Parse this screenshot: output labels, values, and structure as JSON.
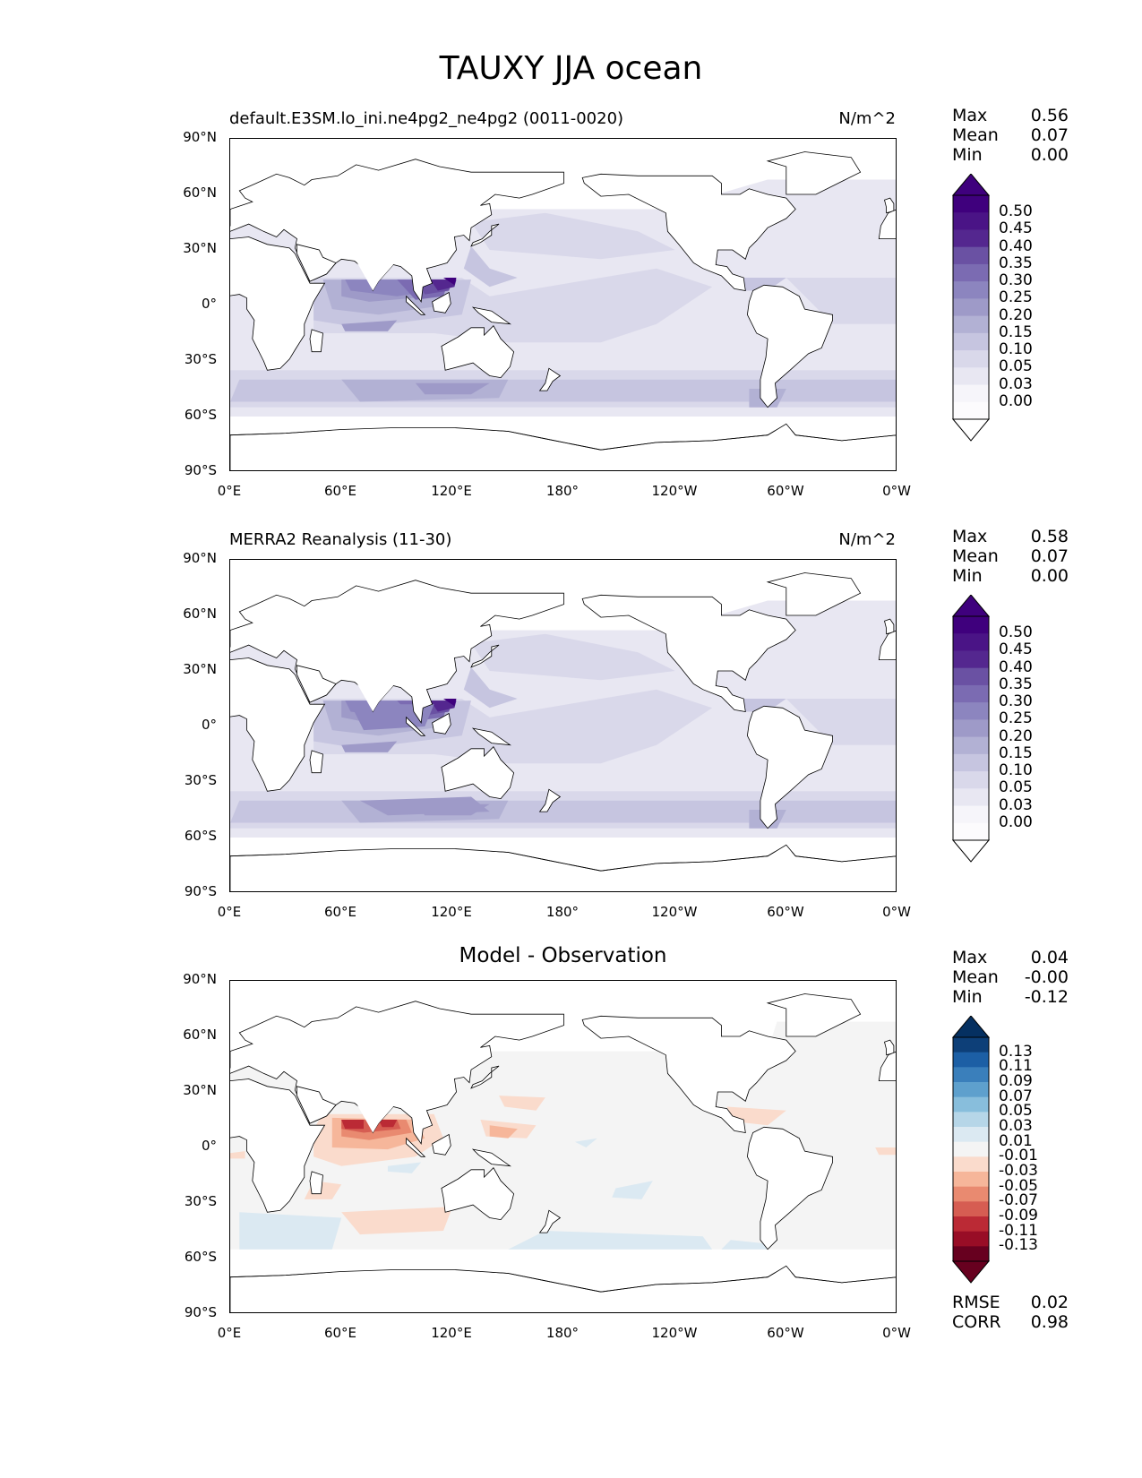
{
  "figure_title": "TAUXY JJA ocean",
  "axis_ticks": {
    "lat": [
      "90°N",
      "60°N",
      "30°N",
      "0°",
      "30°S",
      "60°S",
      "90°S"
    ],
    "lon": [
      "0°E",
      "60°E",
      "120°E",
      "180°",
      "120°W",
      "60°W",
      "0°W"
    ]
  },
  "panels": [
    {
      "title_left": "default.E3SM.lo_ini.ne4pg2_ne4pg2 (0011-0020)",
      "title_right": "N/m^2",
      "title_center": "",
      "stats": {
        "max_label": "Max",
        "max": "0.56",
        "mean_label": "Mean",
        "mean": "0.07",
        "min_label": "Min",
        "min": "0.00"
      },
      "colorbar": {
        "labels": [
          "0.50",
          "0.45",
          "0.40",
          "0.35",
          "0.30",
          "0.25",
          "0.20",
          "0.15",
          "0.10",
          "0.05",
          "0.03",
          "0.00"
        ],
        "colors": [
          "#3f007d",
          "#4a1486",
          "#54278f",
          "#6a51a3",
          "#7b6bb2",
          "#8c85bf",
          "#9e9ac8",
          "#b2b1d4",
          "#c6c5e0",
          "#d9d8ea",
          "#e8e7f2",
          "#f6f5fa",
          "#fcfbfd"
        ],
        "top_color": "#3f007d",
        "bottom_color": "#ffffff"
      }
    },
    {
      "title_left": "MERRA2 Reanalysis (11-30)",
      "title_right": "N/m^2",
      "title_center": "",
      "stats": {
        "max_label": "Max",
        "max": "0.58",
        "mean_label": "Mean",
        "mean": "0.07",
        "min_label": "Min",
        "min": "0.00"
      },
      "colorbar": {
        "labels": [
          "0.50",
          "0.45",
          "0.40",
          "0.35",
          "0.30",
          "0.25",
          "0.20",
          "0.15",
          "0.10",
          "0.05",
          "0.03",
          "0.00"
        ],
        "colors": [
          "#3f007d",
          "#4a1486",
          "#54278f",
          "#6a51a3",
          "#7b6bb2",
          "#8c85bf",
          "#9e9ac8",
          "#b2b1d4",
          "#c6c5e0",
          "#d9d8ea",
          "#e8e7f2",
          "#f6f5fa",
          "#fcfbfd"
        ],
        "top_color": "#3f007d",
        "bottom_color": "#ffffff"
      }
    },
    {
      "title_left": "",
      "title_right": "",
      "title_center": "Model - Observation",
      "stats": {
        "max_label": "Max",
        "max": "0.04",
        "mean_label": "Mean",
        "mean": "-0.00",
        "min_label": "Min",
        "min": "-0.12"
      },
      "colorbar": {
        "labels": [
          "0.13",
          "0.11",
          "0.09",
          "0.07",
          "0.05",
          "0.03",
          "0.01",
          "-0.01",
          "-0.03",
          "-0.05",
          "-0.07",
          "-0.09",
          "-0.11",
          "-0.13"
        ],
        "colors": [
          "#0d3f78",
          "#1c5fa5",
          "#3a7fbb",
          "#5ea0cd",
          "#88bedc",
          "#b6d6e8",
          "#dbe9f2",
          "#f4f4f4",
          "#fadbcc",
          "#f6b69a",
          "#e98a70",
          "#d65d52",
          "#bb2a35",
          "#980d26",
          "#67001f"
        ],
        "top_color": "#053061",
        "bottom_color": "#67001f"
      },
      "metrics": {
        "rmse_label": "RMSE",
        "rmse": "0.02",
        "corr_label": "CORR",
        "corr": "0.98"
      }
    }
  ]
}
